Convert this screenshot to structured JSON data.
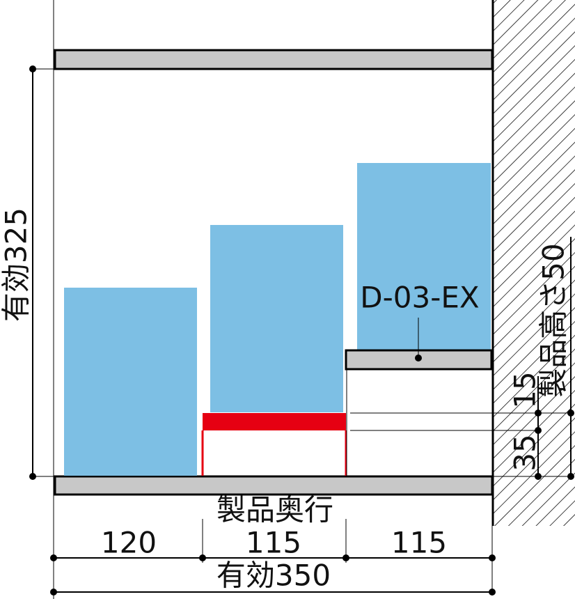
{
  "left_dimension": "有効325",
  "shelf_label": "D-03-EX",
  "right_dimensions": {
    "height": "製品高さ50",
    "upper": "15",
    "lower": "35"
  },
  "bottom_dimensions": {
    "title": "製品奥行",
    "segments": [
      "120",
      "115",
      "115"
    ],
    "total": "有効350"
  }
}
